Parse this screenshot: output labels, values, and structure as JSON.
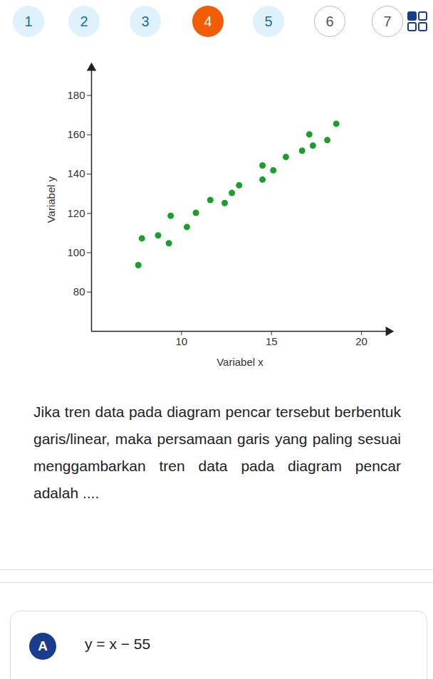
{
  "navigation": [
    "1",
    "2",
    "3",
    "4",
    "5",
    "6",
    "7"
  ],
  "current": "4",
  "answered": [
    "1",
    "2",
    "3",
    "5"
  ],
  "chart_data": {
    "type": "scatter",
    "x_label": "Variabel x",
    "y_label": "Variabel y",
    "x": [
      7.6,
      7.8,
      8.7,
      9.3,
      9.4,
      10.3,
      10.8,
      11.6,
      12.4,
      12.8,
      13.2,
      14.5,
      14.5,
      15.1,
      15.8,
      16.7,
      17.1,
      17.3,
      18.1,
      18.6
    ],
    "values": [
      93.7,
      107.3,
      108.8,
      104.8,
      118.8,
      113.1,
      120.3,
      126.8,
      125.3,
      130.4,
      134.3,
      144.4,
      137.2,
      141.9,
      148.7,
      151.9,
      160.2,
      154.5,
      157.3,
      165.6
    ],
    "color": "#1a9e2e",
    "marker": "circle",
    "xlim": [
      5,
      21.5
    ],
    "xticks": [
      10,
      15,
      20
    ],
    "ylim": [
      60,
      194
    ],
    "yticks": [
      80,
      100,
      120,
      140,
      160,
      180
    ],
    "grid": false
  },
  "question": "Jika tren data pada diagram pencar tersebut berbentuk garis/linear, maka persamaan garis yang paling sesuai menggambarkan tren data pada diagram pencar adalah ....",
  "options": [
    {
      "letter": "A",
      "text": "y = x − 55"
    }
  ]
}
